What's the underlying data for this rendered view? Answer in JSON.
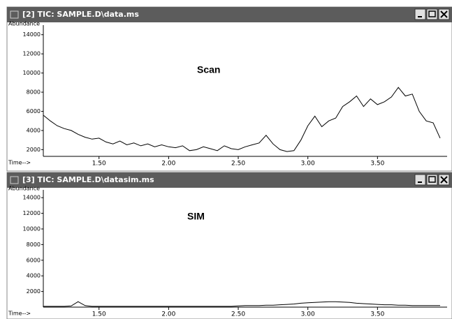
{
  "chart_data": [
    {
      "type": "line",
      "title": "[2] TIC: SAMPLE.D\\data.ms",
      "annotation": "Scan",
      "ylabel": "Abundance",
      "xlabel": "Time-->",
      "color": "#000000",
      "x": [
        1.1,
        1.15,
        1.2,
        1.25,
        1.3,
        1.35,
        1.4,
        1.45,
        1.5,
        1.55,
        1.6,
        1.65,
        1.7,
        1.75,
        1.8,
        1.85,
        1.9,
        1.95,
        2.0,
        2.05,
        2.1,
        2.15,
        2.2,
        2.25,
        2.3,
        2.35,
        2.4,
        2.45,
        2.5,
        2.55,
        2.6,
        2.65,
        2.7,
        2.75,
        2.8,
        2.85,
        2.9,
        2.95,
        3.0,
        3.05,
        3.1,
        3.15,
        3.2,
        3.25,
        3.3,
        3.35,
        3.4,
        3.45,
        3.5,
        3.55,
        3.6,
        3.65,
        3.7,
        3.75,
        3.8,
        3.85,
        3.9,
        3.95
      ],
      "values": [
        5600,
        5000,
        4500,
        4200,
        4000,
        3600,
        3300,
        3100,
        3200,
        2800,
        2600,
        2900,
        2500,
        2700,
        2400,
        2600,
        2300,
        2500,
        2300,
        2200,
        2400,
        1900,
        2000,
        2300,
        2100,
        1900,
        2400,
        2100,
        2000,
        2300,
        2500,
        2700,
        3500,
        2600,
        2000,
        1800,
        1900,
        3000,
        4500,
        5500,
        4400,
        5000,
        5300,
        6500,
        7000,
        7600,
        6500,
        7300,
        6700,
        7000,
        7500,
        8500,
        7600,
        7800,
        6000,
        5000,
        4800,
        3200
      ],
      "xlim": [
        1.1,
        4.0
      ],
      "ylim": [
        1300,
        15000
      ],
      "xticks": [
        {
          "value": 1.5,
          "label": "1.50"
        },
        {
          "value": 2.0,
          "label": "2.00"
        },
        {
          "value": 2.5,
          "label": "2.50"
        },
        {
          "value": 3.0,
          "label": "3.00"
        },
        {
          "value": 3.5,
          "label": "3.50"
        }
      ],
      "yticks": [
        2000,
        4000,
        6000,
        8000,
        10000,
        12000,
        14000
      ]
    },
    {
      "type": "line",
      "title": "[3] TIC: SAMPLE.D\\datasim.ms",
      "annotation": "SIM",
      "ylabel": "Abundance",
      "xlabel": "Time-->",
      "color": "#000000",
      "x": [
        1.1,
        1.15,
        1.2,
        1.25,
        1.3,
        1.35,
        1.4,
        1.45,
        1.5,
        1.55,
        1.6,
        1.65,
        1.7,
        1.75,
        1.8,
        1.85,
        1.9,
        1.95,
        2.0,
        2.05,
        2.1,
        2.15,
        2.2,
        2.25,
        2.3,
        2.35,
        2.4,
        2.45,
        2.5,
        2.55,
        2.6,
        2.65,
        2.7,
        2.75,
        2.8,
        2.85,
        2.9,
        2.95,
        3.0,
        3.05,
        3.1,
        3.15,
        3.2,
        3.25,
        3.3,
        3.35,
        3.4,
        3.45,
        3.5,
        3.55,
        3.6,
        3.65,
        3.7,
        3.75,
        3.8,
        3.85,
        3.9,
        3.95
      ],
      "values": [
        100,
        100,
        100,
        100,
        150,
        700,
        200,
        100,
        100,
        100,
        100,
        100,
        100,
        100,
        100,
        100,
        100,
        100,
        100,
        100,
        100,
        100,
        100,
        100,
        100,
        100,
        100,
        100,
        150,
        200,
        200,
        200,
        250,
        250,
        300,
        350,
        400,
        500,
        550,
        600,
        650,
        700,
        700,
        650,
        600,
        500,
        450,
        400,
        350,
        300,
        300,
        250,
        250,
        200,
        200,
        200,
        200,
        200
      ],
      "xlim": [
        1.1,
        4.0
      ],
      "ylim": [
        0,
        15000
      ],
      "xticks": [
        {
          "value": 1.5,
          "label": "1.50"
        },
        {
          "value": 2.0,
          "label": "2.00"
        },
        {
          "value": 2.5,
          "label": "2.50"
        },
        {
          "value": 3.0,
          "label": "3.00"
        },
        {
          "value": 3.5,
          "label": "3.50"
        }
      ],
      "yticks": [
        2000,
        4000,
        6000,
        8000,
        10000,
        12000,
        14000
      ]
    }
  ]
}
